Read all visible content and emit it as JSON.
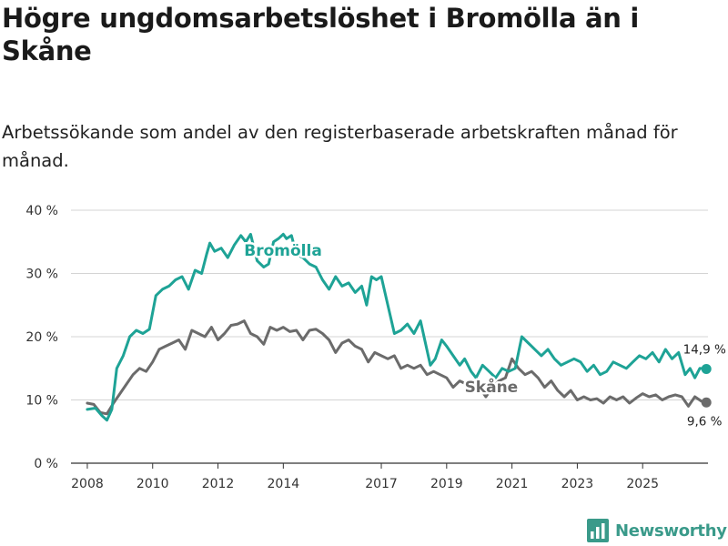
{
  "chart_data": {
    "type": "line",
    "title": "Högre ungdomsarbetslöshet i Bromölla än i Skåne",
    "subtitle": "Arbetssökande som andel av den registerbaserade arbetskraften månad för månad.",
    "y_ticks": [
      "0 %",
      "10 %",
      "20 %",
      "30 %",
      "40 %"
    ],
    "y_tick_values": [
      0,
      10,
      20,
      30,
      40
    ],
    "ylim": [
      0,
      40
    ],
    "x_ticks": [
      "2008",
      "2010",
      "2012",
      "2014",
      "2017",
      "2019",
      "2021",
      "2023",
      "2025"
    ],
    "x_tick_values": [
      2008,
      2010,
      2012,
      2014,
      2017,
      2019,
      2021,
      2023,
      2025
    ],
    "xlim": [
      2007.5,
      2027.0
    ],
    "series": [
      {
        "name": "Bromölla",
        "color": "#1ea396",
        "end_label": "14,9 %",
        "end_value": 14.9,
        "points": [
          [
            2008.0,
            8.5
          ],
          [
            2008.25,
            8.7
          ],
          [
            2008.45,
            7.5
          ],
          [
            2008.6,
            6.8
          ],
          [
            2008.75,
            8.5
          ],
          [
            2008.9,
            15.0
          ],
          [
            2009.1,
            17.0
          ],
          [
            2009.3,
            20.0
          ],
          [
            2009.5,
            21.0
          ],
          [
            2009.7,
            20.5
          ],
          [
            2009.9,
            21.2
          ],
          [
            2010.1,
            26.5
          ],
          [
            2010.3,
            27.5
          ],
          [
            2010.5,
            28.0
          ],
          [
            2010.7,
            29.0
          ],
          [
            2010.9,
            29.5
          ],
          [
            2011.1,
            27.5
          ],
          [
            2011.3,
            30.5
          ],
          [
            2011.5,
            30.0
          ],
          [
            2011.65,
            33.0
          ],
          [
            2011.75,
            34.8
          ],
          [
            2011.9,
            33.5
          ],
          [
            2012.1,
            34.0
          ],
          [
            2012.3,
            32.5
          ],
          [
            2012.5,
            34.5
          ],
          [
            2012.7,
            36.0
          ],
          [
            2012.85,
            35.0
          ],
          [
            2013.0,
            36.2
          ],
          [
            2013.2,
            32.0
          ],
          [
            2013.4,
            31.0
          ],
          [
            2013.55,
            31.5
          ],
          [
            2013.7,
            35.0
          ],
          [
            2013.85,
            35.5
          ],
          [
            2014.0,
            36.2
          ],
          [
            2014.1,
            35.5
          ],
          [
            2014.25,
            36.0
          ],
          [
            2014.4,
            33.0
          ],
          [
            2014.6,
            32.5
          ],
          [
            2014.8,
            31.5
          ],
          [
            2015.0,
            31.0
          ],
          [
            2015.2,
            29.0
          ],
          [
            2015.4,
            27.5
          ],
          [
            2015.6,
            29.5
          ],
          [
            2015.8,
            28.0
          ],
          [
            2016.0,
            28.5
          ],
          [
            2016.2,
            27.0
          ],
          [
            2016.4,
            28.0
          ],
          [
            2016.55,
            25.0
          ],
          [
            2016.7,
            29.5
          ],
          [
            2016.85,
            29.0
          ],
          [
            2017.0,
            29.5
          ],
          [
            2017.2,
            25.0
          ],
          [
            2017.4,
            20.5
          ],
          [
            2017.6,
            21.0
          ],
          [
            2017.8,
            22.0
          ],
          [
            2018.0,
            20.5
          ],
          [
            2018.2,
            22.5
          ],
          [
            2018.35,
            19.0
          ],
          [
            2018.5,
            15.5
          ],
          [
            2018.65,
            16.5
          ],
          [
            2018.85,
            19.5
          ],
          [
            2019.0,
            18.5
          ],
          [
            2019.2,
            17.0
          ],
          [
            2019.4,
            15.5
          ],
          [
            2019.55,
            16.5
          ],
          [
            2019.75,
            14.5
          ],
          [
            2019.9,
            13.5
          ],
          [
            2020.1,
            15.5
          ],
          [
            2020.3,
            14.5
          ],
          [
            2020.5,
            13.5
          ],
          [
            2020.7,
            15.0
          ],
          [
            2020.9,
            14.5
          ],
          [
            2021.1,
            15.0
          ],
          [
            2021.3,
            20.0
          ],
          [
            2021.5,
            19.0
          ],
          [
            2021.7,
            18.0
          ],
          [
            2021.9,
            17.0
          ],
          [
            2022.1,
            18.0
          ],
          [
            2022.3,
            16.5
          ],
          [
            2022.5,
            15.5
          ],
          [
            2022.7,
            16.0
          ],
          [
            2022.9,
            16.5
          ],
          [
            2023.1,
            16.0
          ],
          [
            2023.3,
            14.5
          ],
          [
            2023.5,
            15.5
          ],
          [
            2023.7,
            14.0
          ],
          [
            2023.9,
            14.5
          ],
          [
            2024.1,
            16.0
          ],
          [
            2024.3,
            15.5
          ],
          [
            2024.5,
            15.0
          ],
          [
            2024.7,
            16.0
          ],
          [
            2024.9,
            17.0
          ],
          [
            2025.1,
            16.5
          ],
          [
            2025.3,
            17.5
          ],
          [
            2025.5,
            16.0
          ],
          [
            2025.7,
            18.0
          ],
          [
            2025.9,
            16.5
          ],
          [
            2026.1,
            17.5
          ],
          [
            2026.3,
            14.0
          ],
          [
            2026.45,
            15.0
          ],
          [
            2026.6,
            13.5
          ],
          [
            2026.75,
            15.0
          ],
          [
            2026.95,
            14.9
          ]
        ]
      },
      {
        "name": "Skåne",
        "color": "#6b6b6b",
        "end_label": "9,6 %",
        "end_value": 9.6,
        "points": [
          [
            2008.0,
            9.5
          ],
          [
            2008.2,
            9.3
          ],
          [
            2008.4,
            8.0
          ],
          [
            2008.6,
            7.8
          ],
          [
            2008.8,
            9.5
          ],
          [
            2009.0,
            11.0
          ],
          [
            2009.2,
            12.5
          ],
          [
            2009.4,
            14.0
          ],
          [
            2009.6,
            15.0
          ],
          [
            2009.8,
            14.5
          ],
          [
            2010.0,
            16.0
          ],
          [
            2010.2,
            18.0
          ],
          [
            2010.4,
            18.5
          ],
          [
            2010.6,
            19.0
          ],
          [
            2010.8,
            19.5
          ],
          [
            2011.0,
            18.0
          ],
          [
            2011.2,
            21.0
          ],
          [
            2011.4,
            20.5
          ],
          [
            2011.6,
            20.0
          ],
          [
            2011.8,
            21.5
          ],
          [
            2012.0,
            19.5
          ],
          [
            2012.2,
            20.5
          ],
          [
            2012.4,
            21.8
          ],
          [
            2012.6,
            22.0
          ],
          [
            2012.8,
            22.5
          ],
          [
            2013.0,
            20.5
          ],
          [
            2013.2,
            20.0
          ],
          [
            2013.4,
            18.8
          ],
          [
            2013.6,
            21.5
          ],
          [
            2013.8,
            21.0
          ],
          [
            2014.0,
            21.5
          ],
          [
            2014.2,
            20.8
          ],
          [
            2014.4,
            21.0
          ],
          [
            2014.6,
            19.5
          ],
          [
            2014.8,
            21.0
          ],
          [
            2015.0,
            21.2
          ],
          [
            2015.2,
            20.5
          ],
          [
            2015.4,
            19.5
          ],
          [
            2015.6,
            17.5
          ],
          [
            2015.8,
            19.0
          ],
          [
            2016.0,
            19.5
          ],
          [
            2016.2,
            18.5
          ],
          [
            2016.4,
            18.0
          ],
          [
            2016.6,
            16.0
          ],
          [
            2016.8,
            17.5
          ],
          [
            2017.0,
            17.0
          ],
          [
            2017.2,
            16.5
          ],
          [
            2017.4,
            17.0
          ],
          [
            2017.6,
            15.0
          ],
          [
            2017.8,
            15.5
          ],
          [
            2018.0,
            15.0
          ],
          [
            2018.2,
            15.5
          ],
          [
            2018.4,
            14.0
          ],
          [
            2018.6,
            14.5
          ],
          [
            2018.8,
            14.0
          ],
          [
            2019.0,
            13.5
          ],
          [
            2019.2,
            12.0
          ],
          [
            2019.4,
            13.0
          ],
          [
            2019.6,
            12.5
          ],
          [
            2019.8,
            11.5
          ],
          [
            2020.0,
            12.0
          ],
          [
            2020.2,
            10.5
          ],
          [
            2020.4,
            12.0
          ],
          [
            2020.6,
            13.0
          ],
          [
            2020.8,
            13.5
          ],
          [
            2021.0,
            16.5
          ],
          [
            2021.2,
            15.0
          ],
          [
            2021.4,
            14.0
          ],
          [
            2021.6,
            14.5
          ],
          [
            2021.8,
            13.5
          ],
          [
            2022.0,
            12.0
          ],
          [
            2022.2,
            13.0
          ],
          [
            2022.4,
            11.5
          ],
          [
            2022.6,
            10.5
          ],
          [
            2022.8,
            11.5
          ],
          [
            2023.0,
            10.0
          ],
          [
            2023.2,
            10.5
          ],
          [
            2023.4,
            10.0
          ],
          [
            2023.6,
            10.2
          ],
          [
            2023.8,
            9.5
          ],
          [
            2024.0,
            10.5
          ],
          [
            2024.2,
            10.0
          ],
          [
            2024.4,
            10.5
          ],
          [
            2024.6,
            9.5
          ],
          [
            2024.8,
            10.3
          ],
          [
            2025.0,
            11.0
          ],
          [
            2025.2,
            10.5
          ],
          [
            2025.4,
            10.8
          ],
          [
            2025.6,
            10.0
          ],
          [
            2025.8,
            10.5
          ],
          [
            2026.0,
            10.8
          ],
          [
            2026.2,
            10.5
          ],
          [
            2026.4,
            9.0
          ],
          [
            2026.6,
            10.5
          ],
          [
            2026.8,
            9.8
          ],
          [
            2026.95,
            9.6
          ]
        ]
      }
    ]
  },
  "branding": {
    "logo_text": "Newsworthy"
  }
}
